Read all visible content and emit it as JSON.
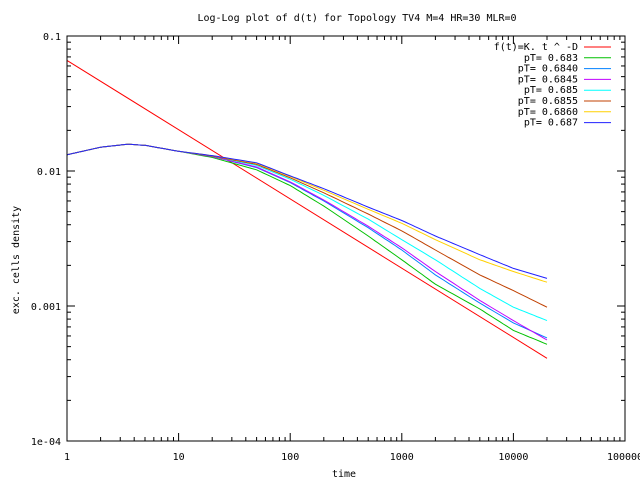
{
  "chart_data": {
    "type": "line",
    "title": "Log-Log plot of d(t) for Topology TV4 M=4 HR=30 MLR=0",
    "xlabel": "time",
    "ylabel": "exc. cells density",
    "x_scale": "log",
    "y_scale": "log",
    "xlim": [
      1,
      100000
    ],
    "ylim": [
      0.0001,
      0.1
    ],
    "x_ticks": [
      {
        "value": 1,
        "label": "1"
      },
      {
        "value": 10,
        "label": "10"
      },
      {
        "value": 100,
        "label": "100"
      },
      {
        "value": 1000,
        "label": "1000"
      },
      {
        "value": 10000,
        "label": "10000"
      },
      {
        "value": 100000,
        "label": "100000"
      }
    ],
    "y_ticks": [
      {
        "value": 0.0001,
        "label": "1e-04"
      },
      {
        "value": 0.001,
        "label": "0.001"
      },
      {
        "value": 0.01,
        "label": "0.01"
      },
      {
        "value": 0.1,
        "label": "0.1"
      }
    ],
    "grid": false,
    "legend_position": "top-right",
    "series": [
      {
        "name": "f(t)=K. t ^ -D",
        "color": "#ff0000",
        "x": [
          1,
          20000
        ],
        "y": [
          0.066,
          0.00041
        ]
      },
      {
        "name": "pT= 0.683",
        "color": "#00c000",
        "x": [
          1,
          2,
          3.5,
          5,
          10,
          20,
          50,
          100,
          200,
          500,
          1000,
          2000,
          5000,
          10000,
          20000
        ],
        "y": [
          0.0132,
          0.015,
          0.0158,
          0.0155,
          0.014,
          0.0126,
          0.0102,
          0.0078,
          0.0055,
          0.0033,
          0.0022,
          0.00145,
          0.00095,
          0.00066,
          0.00052
        ]
      },
      {
        "name": "pT= 0.6840",
        "color": "#0080ff",
        "x": [
          1,
          2,
          3.5,
          5,
          10,
          20,
          50,
          100,
          200,
          500,
          1000,
          2000,
          5000,
          10000,
          20000
        ],
        "y": [
          0.0132,
          0.015,
          0.0158,
          0.0155,
          0.014,
          0.0128,
          0.0106,
          0.0082,
          0.006,
          0.0038,
          0.0026,
          0.0017,
          0.00105,
          0.00075,
          0.00058
        ]
      },
      {
        "name": "pT= 0.6845",
        "color": "#c000ff",
        "x": [
          1,
          2,
          3.5,
          5,
          10,
          20,
          50,
          100,
          200,
          500,
          1000,
          2000,
          5000,
          10000,
          20000
        ],
        "y": [
          0.0132,
          0.015,
          0.0158,
          0.0155,
          0.014,
          0.0128,
          0.0107,
          0.0083,
          0.0061,
          0.0039,
          0.0027,
          0.0018,
          0.0011,
          0.00078,
          0.00056
        ]
      },
      {
        "name": "pT= 0.685",
        "color": "#00ffff",
        "x": [
          1,
          2,
          3.5,
          5,
          10,
          20,
          50,
          100,
          200,
          500,
          1000,
          2000,
          5000,
          10000,
          20000
        ],
        "y": [
          0.0132,
          0.015,
          0.0158,
          0.0155,
          0.014,
          0.0129,
          0.011,
          0.0087,
          0.0066,
          0.0044,
          0.0031,
          0.0022,
          0.00135,
          0.00098,
          0.00078
        ]
      },
      {
        "name": "pT= 0.6855",
        "color": "#c04000",
        "x": [
          1,
          2,
          3.5,
          5,
          10,
          20,
          50,
          100,
          200,
          500,
          1000,
          2000,
          5000,
          10000,
          20000
        ],
        "y": [
          0.0132,
          0.015,
          0.0158,
          0.0155,
          0.014,
          0.0129,
          0.0112,
          0.0089,
          0.0069,
          0.0048,
          0.0036,
          0.0026,
          0.0017,
          0.0013,
          0.00098
        ]
      },
      {
        "name": "pT= 0.6860",
        "color": "#ffd000",
        "x": [
          1,
          2,
          3.5,
          5,
          10,
          20,
          50,
          100,
          200,
          500,
          1000,
          2000,
          5000,
          10000,
          20000
        ],
        "y": [
          0.0132,
          0.015,
          0.0158,
          0.0155,
          0.014,
          0.013,
          0.0114,
          0.0091,
          0.0072,
          0.0052,
          0.0041,
          0.0031,
          0.0022,
          0.0018,
          0.0015
        ]
      },
      {
        "name": "pT= 0.687",
        "color": "#2020ff",
        "x": [
          1,
          2,
          3.5,
          5,
          10,
          20,
          50,
          100,
          200,
          500,
          1000,
          2000,
          5000,
          10000,
          20000
        ],
        "y": [
          0.0132,
          0.015,
          0.0158,
          0.0155,
          0.014,
          0.013,
          0.0115,
          0.0092,
          0.0074,
          0.0054,
          0.0043,
          0.0033,
          0.0024,
          0.0019,
          0.0016
        ]
      }
    ]
  }
}
